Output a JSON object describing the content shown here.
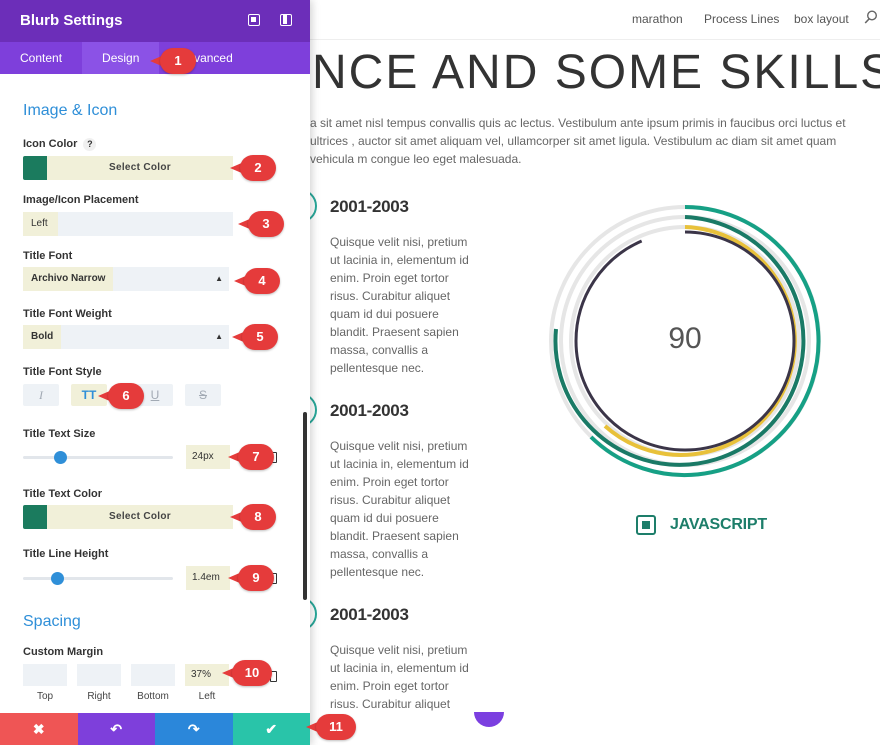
{
  "site": {
    "nav": [
      "marathon",
      "Process Lines",
      "box layout"
    ],
    "heading": "NCE AND SOME SKILLS",
    "paragraph": "a sit amet nisl tempus convallis quis ac lectus. Vestibulum ante ipsum primis in faucibus orci luctus et ultrices , auctor sit amet aliquam vel, ullamcorper sit amet ligula. Vestibulum ac diam sit amet quam vehicula m congue leo eget malesuada.",
    "timeline": [
      {
        "title": "2001-2003",
        "text": "Quisque velit nisi, pretium ut lacinia in, elementum id enim. Proin eget tortor risus. Curabitur aliquet quam id dui posuere blandit. Praesent sapien massa, convallis a pellentesque nec."
      },
      {
        "title": "2001-2003",
        "text": "Quisque velit nisi, pretium ut lacinia in, elementum id enim. Proin eget tortor risus. Curabitur aliquet quam id dui posuere blandit. Praesent sapien massa, convallis a pellentesque nec."
      },
      {
        "title": "2001-2003",
        "text": "Quisque velit nisi, pretium ut lacinia in, elementum id enim. Proin eget tortor risus. Curabitur aliquet"
      }
    ],
    "skill": {
      "value": "90",
      "label": "JAVASCRIPT"
    }
  },
  "panel": {
    "title": "Blurb Settings",
    "tabs": [
      "Content",
      "Design",
      "Advanced"
    ],
    "active_tab": "Design",
    "section_image_icon": "Image & Icon",
    "icon_color_label": "Icon Color",
    "help": "?",
    "select_color": "Select Color",
    "placement_label": "Image/Icon Placement",
    "placement_value": "Left",
    "title_font_label": "Title Font",
    "title_font_value": "Archivo Narrow",
    "title_weight_label": "Title Font Weight",
    "title_weight_value": "Bold",
    "title_style_label": "Title Font Style",
    "style_buttons": [
      "I",
      "TT",
      "U",
      "S"
    ],
    "title_size_label": "Title Text Size",
    "title_size_value": "24px",
    "title_color_label": "Title Text Color",
    "line_height_label": "Title Line Height",
    "line_height_value": "1.4em",
    "section_spacing": "Spacing",
    "margin_label": "Custom Margin",
    "margin_sides": [
      "Top",
      "Right",
      "Bottom",
      "Left"
    ],
    "margin_left_value": "37%",
    "footer": {
      "discard": "✖",
      "undo": "↶",
      "redo": "↷",
      "save": "✔"
    }
  },
  "markers": [
    "1",
    "2",
    "3",
    "4",
    "5",
    "6",
    "7",
    "8",
    "9",
    "10",
    "11"
  ],
  "colors": {
    "purple_header": "#6c2eb9",
    "accent_blue": "#2f8fd8",
    "swatch_green": "#1b7b5e",
    "ring_teal": "#16a085",
    "ring_gold": "#e8c13a",
    "ring_dark": "#3b3548",
    "marker_red": "#e53b3b"
  }
}
